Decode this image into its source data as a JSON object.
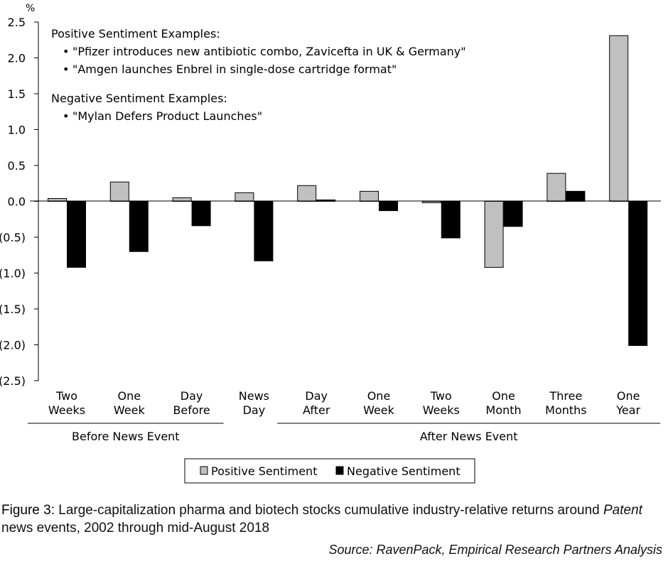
{
  "chart_data": {
    "type": "bar",
    "unit": "%",
    "categories": [
      {
        "line1": "Two",
        "line2": "Weeks"
      },
      {
        "line1": "One",
        "line2": "Week"
      },
      {
        "line1": "Day",
        "line2": "Before"
      },
      {
        "line1": "News",
        "line2": "Day"
      },
      {
        "line1": "Day",
        "line2": "After"
      },
      {
        "line1": "One",
        "line2": "Week"
      },
      {
        "line1": "Two",
        "line2": "Weeks"
      },
      {
        "line1": "One",
        "line2": "Month"
      },
      {
        "line1": "Three",
        "line2": "Months"
      },
      {
        "line1": "One",
        "line2": "Year"
      }
    ],
    "series": [
      {
        "name": "Positive Sentiment",
        "color": "#c0c0c0",
        "values": [
          0.04,
          0.27,
          0.05,
          0.12,
          0.22,
          0.14,
          -0.02,
          -0.92,
          0.39,
          2.31
        ]
      },
      {
        "name": "Negative Sentiment",
        "color": "#000000",
        "values": [
          -0.92,
          -0.7,
          -0.34,
          -0.83,
          0.02,
          -0.13,
          -0.51,
          -0.35,
          0.14,
          -2.01
        ]
      }
    ],
    "ylim": [
      -2.5,
      2.5
    ],
    "yticks": [
      "2.5",
      "2.0",
      "1.5",
      "1.0",
      "0.5",
      "0.0",
      "(0.5)",
      "(1.0)",
      "(1.5)",
      "(2.0)",
      "(2.5)"
    ],
    "ytick_values": [
      2.5,
      2.0,
      1.5,
      1.0,
      0.5,
      0.0,
      -0.5,
      -1.0,
      -1.5,
      -2.0,
      -2.5
    ],
    "groups": [
      {
        "label": "Before News Event",
        "from": 0,
        "to": 2
      },
      {
        "label": "After News Event",
        "from": 4,
        "to": 9
      }
    ],
    "annotations": {
      "positive_heading": "Positive Sentiment Examples:",
      "positive_items": [
        "\"Pfizer introduces new antibiotic combo, Zavicefta in UK & Germany\"",
        "\"Amgen launches Enbrel in single-dose cartridge format\""
      ],
      "negative_heading": "Negative Sentiment Examples:",
      "negative_items": [
        "\"Mylan Defers Product Launches\""
      ]
    },
    "legend": "bottom-center",
    "grid": false
  },
  "caption": {
    "label": "Figure 3:",
    "part1": " Large-capitalization pharma and biotech stocks cumulative industry-relative returns around ",
    "italic": "Patent",
    "part2": " news events, 2002 through mid-August 2018"
  },
  "source": "Source: RavenPack, Empirical Research Partners Analysis"
}
